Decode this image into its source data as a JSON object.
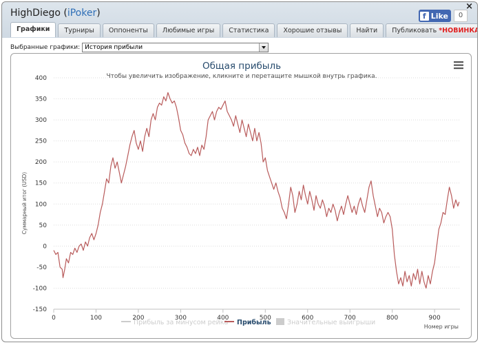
{
  "window": {
    "player_name": "HighDiego",
    "network": "iPoker",
    "close_glyph": "×"
  },
  "facebook": {
    "logo": "f",
    "like_label": "Like",
    "count": "0"
  },
  "tabs": [
    {
      "label": "Графики",
      "active": true
    },
    {
      "label": "Турниры"
    },
    {
      "label": "Оппоненты"
    },
    {
      "label": "Любимые игры"
    },
    {
      "label": "Статистика"
    },
    {
      "label": "Хорошие отзывы"
    },
    {
      "label": "Найти"
    },
    {
      "label": "Публиковать ",
      "badge": "*НОВИНКА*"
    }
  ],
  "selector": {
    "label": "Выбранные графики:",
    "value": "История прибыли"
  },
  "icons": {
    "menu": "menu-icon",
    "dropdown": "chevron-down-icon",
    "close": "close-icon"
  },
  "chart_data": {
    "type": "line",
    "title": "Общая прибыль",
    "subtitle": "Чтобы увеличить изображение, кликните и перетащите мышкой внутрь графика.",
    "xlabel": "Номер игры",
    "ylabel": "Суммарный итог (USD)",
    "xlim": [
      0,
      960
    ],
    "ylim": [
      -150,
      400
    ],
    "x_ticks": [
      0,
      100,
      200,
      300,
      400,
      500,
      600,
      700,
      800,
      900
    ],
    "y_ticks": [
      400,
      350,
      300,
      250,
      200,
      150,
      100,
      50,
      0,
      -50,
      -100,
      -150
    ],
    "grid": "horizontal",
    "legend_position": "bottom",
    "series": [
      {
        "name": "Прибыль за минусом рейка",
        "color": "#cccccc",
        "visible": false
      },
      {
        "name": "Прибыль",
        "color": "#b85a5a",
        "visible": true,
        "points": [
          [
            0,
            -10
          ],
          [
            5,
            -20
          ],
          [
            10,
            -15
          ],
          [
            15,
            -50
          ],
          [
            20,
            -55
          ],
          [
            22,
            -75
          ],
          [
            26,
            -55
          ],
          [
            30,
            -30
          ],
          [
            35,
            -40
          ],
          [
            40,
            -15
          ],
          [
            45,
            -20
          ],
          [
            50,
            -5
          ],
          [
            55,
            -15
          ],
          [
            60,
            0
          ],
          [
            65,
            5
          ],
          [
            70,
            -10
          ],
          [
            75,
            10
          ],
          [
            80,
            0
          ],
          [
            85,
            20
          ],
          [
            90,
            30
          ],
          [
            95,
            15
          ],
          [
            100,
            30
          ],
          [
            105,
            50
          ],
          [
            110,
            80
          ],
          [
            115,
            100
          ],
          [
            120,
            130
          ],
          [
            125,
            160
          ],
          [
            130,
            150
          ],
          [
            135,
            190
          ],
          [
            140,
            210
          ],
          [
            145,
            185
          ],
          [
            150,
            200
          ],
          [
            155,
            175
          ],
          [
            160,
            150
          ],
          [
            165,
            170
          ],
          [
            170,
            190
          ],
          [
            175,
            215
          ],
          [
            180,
            240
          ],
          [
            185,
            260
          ],
          [
            190,
            275
          ],
          [
            195,
            245
          ],
          [
            200,
            230
          ],
          [
            205,
            250
          ],
          [
            210,
            225
          ],
          [
            215,
            260
          ],
          [
            220,
            280
          ],
          [
            225,
            260
          ],
          [
            230,
            300
          ],
          [
            235,
            315
          ],
          [
            240,
            300
          ],
          [
            245,
            330
          ],
          [
            250,
            340
          ],
          [
            255,
            335
          ],
          [
            260,
            355
          ],
          [
            265,
            345
          ],
          [
            270,
            365
          ],
          [
            275,
            350
          ],
          [
            280,
            340
          ],
          [
            285,
            345
          ],
          [
            290,
            330
          ],
          [
            295,
            305
          ],
          [
            300,
            275
          ],
          [
            305,
            265
          ],
          [
            310,
            245
          ],
          [
            315,
            235
          ],
          [
            320,
            220
          ],
          [
            325,
            215
          ],
          [
            330,
            230
          ],
          [
            335,
            220
          ],
          [
            340,
            235
          ],
          [
            345,
            215
          ],
          [
            350,
            240
          ],
          [
            355,
            230
          ],
          [
            360,
            260
          ],
          [
            365,
            300
          ],
          [
            370,
            310
          ],
          [
            375,
            320
          ],
          [
            380,
            300
          ],
          [
            385,
            320
          ],
          [
            390,
            330
          ],
          [
            395,
            325
          ],
          [
            400,
            335
          ],
          [
            405,
            345
          ],
          [
            410,
            320
          ],
          [
            415,
            310
          ],
          [
            420,
            300
          ],
          [
            425,
            285
          ],
          [
            430,
            310
          ],
          [
            435,
            290
          ],
          [
            440,
            270
          ],
          [
            445,
            300
          ],
          [
            450,
            280
          ],
          [
            455,
            260
          ],
          [
            460,
            290
          ],
          [
            465,
            270
          ],
          [
            470,
            250
          ],
          [
            475,
            280
          ],
          [
            480,
            250
          ],
          [
            485,
            270
          ],
          [
            490,
            245
          ],
          [
            495,
            200
          ],
          [
            500,
            210
          ],
          [
            505,
            180
          ],
          [
            510,
            165
          ],
          [
            515,
            150
          ],
          [
            520,
            135
          ],
          [
            525,
            150
          ],
          [
            530,
            130
          ],
          [
            535,
            115
          ],
          [
            540,
            90
          ],
          [
            545,
            80
          ],
          [
            550,
            65
          ],
          [
            555,
            100
          ],
          [
            560,
            140
          ],
          [
            565,
            120
          ],
          [
            570,
            80
          ],
          [
            575,
            100
          ],
          [
            580,
            130
          ],
          [
            585,
            110
          ],
          [
            590,
            145
          ],
          [
            595,
            120
          ],
          [
            600,
            100
          ],
          [
            605,
            130
          ],
          [
            610,
            110
          ],
          [
            615,
            85
          ],
          [
            620,
            120
          ],
          [
            625,
            100
          ],
          [
            630,
            90
          ],
          [
            635,
            110
          ],
          [
            640,
            95
          ],
          [
            645,
            70
          ],
          [
            650,
            90
          ],
          [
            655,
            80
          ],
          [
            660,
            100
          ],
          [
            665,
            85
          ],
          [
            670,
            60
          ],
          [
            675,
            80
          ],
          [
            680,
            95
          ],
          [
            685,
            75
          ],
          [
            690,
            100
          ],
          [
            695,
            120
          ],
          [
            700,
            100
          ],
          [
            705,
            80
          ],
          [
            710,
            95
          ],
          [
            715,
            75
          ],
          [
            720,
            100
          ],
          [
            725,
            115
          ],
          [
            730,
            95
          ],
          [
            735,
            80
          ],
          [
            740,
            110
          ],
          [
            745,
            140
          ],
          [
            750,
            155
          ],
          [
            755,
            120
          ],
          [
            760,
            95
          ],
          [
            765,
            70
          ],
          [
            770,
            90
          ],
          [
            775,
            80
          ],
          [
            780,
            55
          ],
          [
            785,
            70
          ],
          [
            790,
            80
          ],
          [
            795,
            70
          ],
          [
            800,
            40
          ],
          [
            805,
            -20
          ],
          [
            810,
            -60
          ],
          [
            815,
            -90
          ],
          [
            820,
            -75
          ],
          [
            825,
            -95
          ],
          [
            830,
            -60
          ],
          [
            835,
            -85
          ],
          [
            840,
            -70
          ],
          [
            845,
            -95
          ],
          [
            850,
            -65
          ],
          [
            855,
            -80
          ],
          [
            860,
            -55
          ],
          [
            865,
            -90
          ],
          [
            870,
            -60
          ],
          [
            875,
            -85
          ],
          [
            880,
            -100
          ],
          [
            885,
            -70
          ],
          [
            890,
            -90
          ],
          [
            895,
            -60
          ],
          [
            900,
            -40
          ],
          [
            905,
            0
          ],
          [
            910,
            40
          ],
          [
            915,
            55
          ],
          [
            920,
            80
          ],
          [
            925,
            75
          ],
          [
            930,
            110
          ],
          [
            935,
            140
          ],
          [
            940,
            120
          ],
          [
            945,
            90
          ],
          [
            950,
            110
          ],
          [
            955,
            95
          ],
          [
            958,
            105
          ]
        ]
      },
      {
        "name": "Значительные выигрыши",
        "color": "#cccccc",
        "visible": false
      }
    ]
  }
}
